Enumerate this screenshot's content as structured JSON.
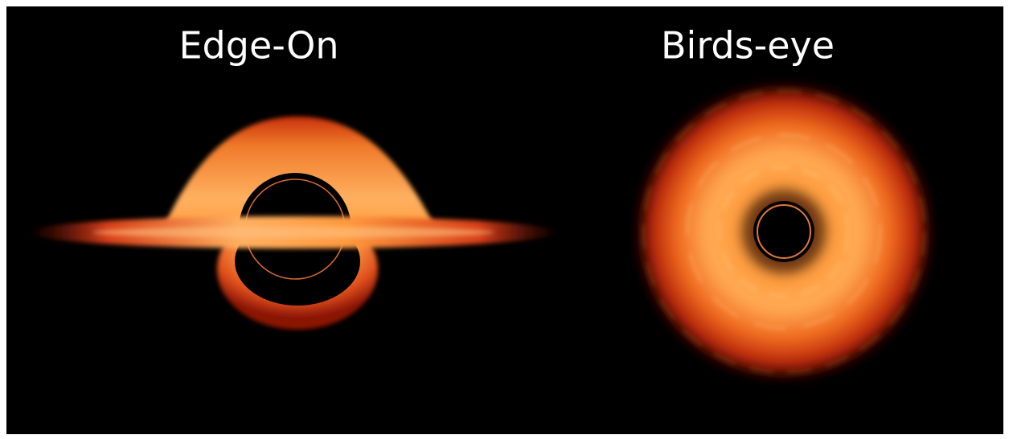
{
  "panels": [
    {
      "title": "Edge-On"
    },
    {
      "title": "Birds-eye"
    }
  ]
}
